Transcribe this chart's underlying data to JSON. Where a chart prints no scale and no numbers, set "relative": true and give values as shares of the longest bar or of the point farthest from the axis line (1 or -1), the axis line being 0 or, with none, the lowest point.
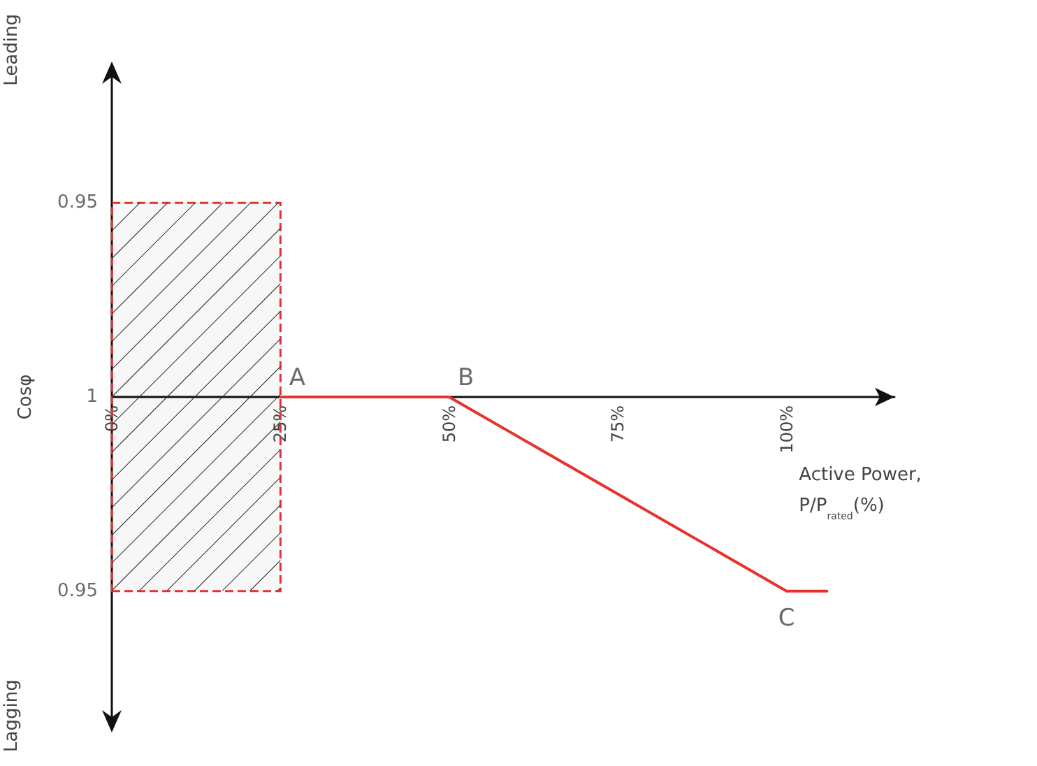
{
  "chart_data": {
    "type": "line",
    "xlabel": "Active Power,\nP/P$_{rated}$(%)",
    "ylabel": "Cosφ",
    "relative": true,
    "x": [
      25,
      50,
      100,
      106
    ],
    "series": [
      {
        "color": "#e8322e",
        "values": [
          0,
          0,
          -1,
          -1
        ]
      }
    ],
    "xlim": [
      0,
      116
    ],
    "xticks": [
      {
        "value": 0,
        "label": "0%"
      },
      {
        "value": 25,
        "label": "25%"
      },
      {
        "value": 50,
        "label": "50%"
      },
      {
        "value": 75,
        "label": "75%"
      },
      {
        "value": 100,
        "label": "100%"
      }
    ],
    "bands": [
      {
        "axis": "x",
        "from": 0,
        "to": 25,
        "color": "#e8322e"
      }
    ],
    "annotations": [
      "Leading",
      "Lagging",
      {
        "text": "A",
        "x": 25,
        "y": 0
      },
      {
        "text": "B",
        "x": 50,
        "y": 0
      },
      {
        "text": "C",
        "x": 100,
        "y": -1
      },
      {
        "text": "0.95",
        "x": 0,
        "y": 1
      },
      {
        "text": "1",
        "x": 0,
        "y": 0
      },
      {
        "text": "0.95",
        "x": 0,
        "y": -1
      }
    ],
    "marker": "none",
    "line_style": "solid"
  }
}
